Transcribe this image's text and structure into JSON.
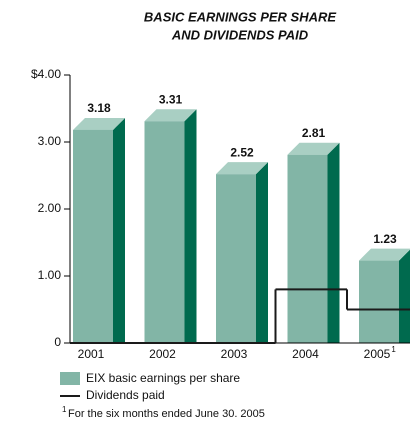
{
  "chart_data": {
    "type": "bar",
    "title": [
      "BASIC EARNINGS PER SHARE",
      "AND DIVIDENDS PAID"
    ],
    "categories": [
      "2001",
      "2002",
      "2003",
      "2004",
      "2005"
    ],
    "category_notes": [
      null,
      null,
      null,
      null,
      "1"
    ],
    "series": [
      {
        "name": "EIX basic earnings per share",
        "color": "#82b5a6",
        "values": [
          3.18,
          3.31,
          2.52,
          2.81,
          1.23
        ]
      },
      {
        "name": "Dividends paid",
        "color": "#1a1a1a",
        "type": "step",
        "values": [
          0,
          0,
          0,
          0.8,
          0.5
        ]
      }
    ],
    "ylim": [
      0,
      4
    ],
    "yticks": [
      {
        "value": 0,
        "label": "0"
      },
      {
        "value": 1,
        "label": "1.00"
      },
      {
        "value": 2,
        "label": "2.00"
      },
      {
        "value": 3,
        "label": "3.00"
      },
      {
        "value": 4,
        "label": "$4.00"
      }
    ],
    "footnote": {
      "marker": "1",
      "text": "For the six months ended June 30. 2005"
    }
  }
}
